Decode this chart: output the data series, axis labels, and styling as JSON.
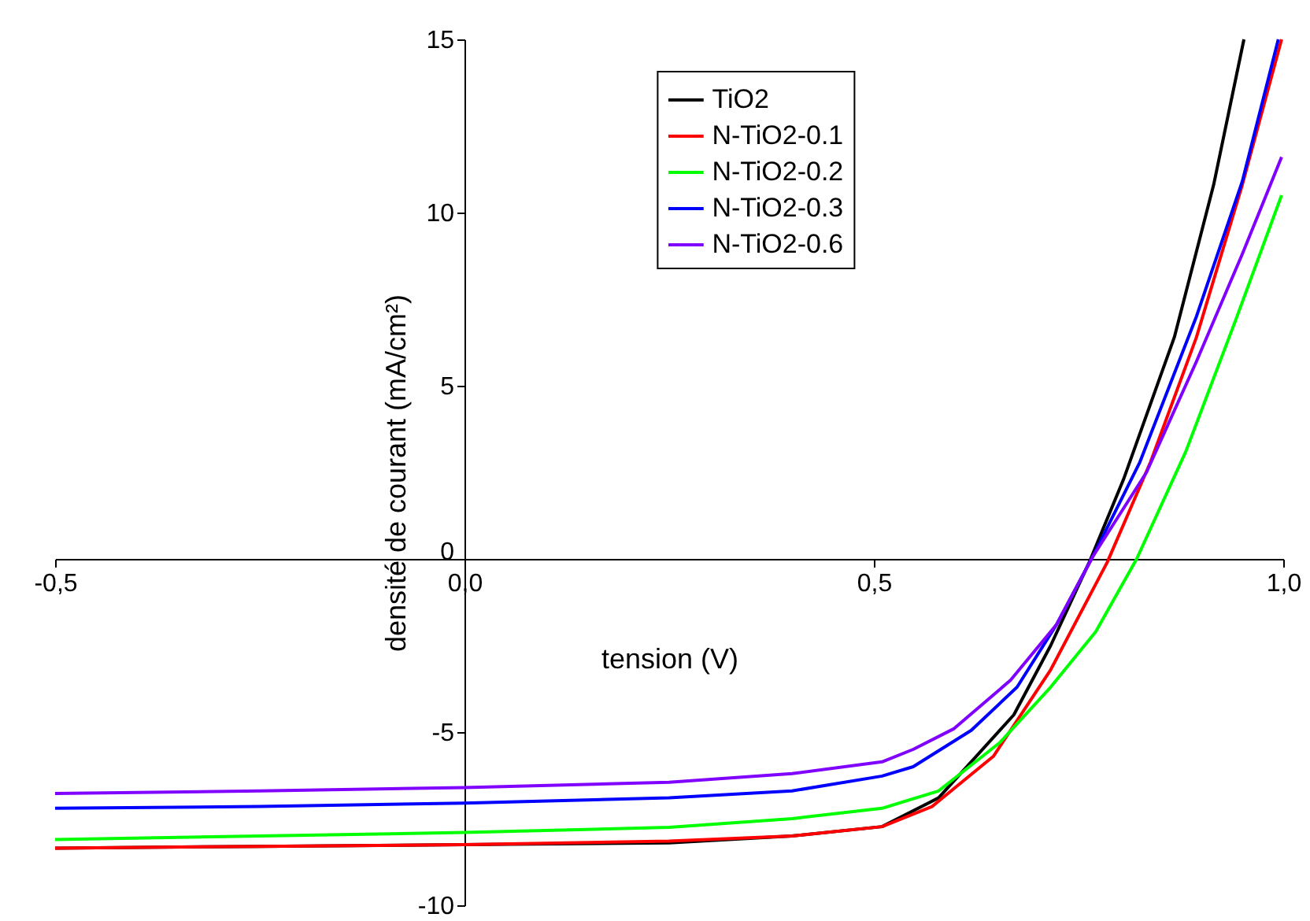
{
  "chart_data": {
    "type": "line",
    "xlabel": "tension (V)",
    "ylabel": "densité de courant (mA/cm²)",
    "xlim": [
      -0.5,
      1.0
    ],
    "ylim": [
      -10,
      15
    ],
    "xticks": [
      {
        "value": -0.5,
        "label": "-0,5"
      },
      {
        "value": 0,
        "label": "0,0"
      },
      {
        "value": 0.5,
        "label": "0,5"
      },
      {
        "value": 1.0,
        "label": "1,0"
      }
    ],
    "yticks": [
      -10,
      -5,
      0,
      5,
      10,
      15
    ],
    "grid": false,
    "legend": "top",
    "line_style": "solid",
    "marker": "none",
    "x": [
      -0.5,
      -0.25,
      0,
      0.25,
      0.4,
      0.51,
      0.579,
      0.671,
      0.716,
      0.763,
      0.805,
      0.867,
      0.915,
      0.952
    ],
    "series": [
      {
        "name": "TiO2",
        "color": "#000000",
        "values": [
          -8.35,
          -8.3,
          -8.25,
          -8.2,
          -8.0,
          -7.73,
          -6.9,
          -4.5,
          -2.5,
          -0.1,
          2.3,
          6.4,
          10.8,
          15
        ]
      },
      {
        "name": "N-TiO2-0.1",
        "color": "#ff0000",
        "x": [
          -0.5,
          -0.25,
          0,
          0.25,
          0.4,
          0.51,
          0.571,
          0.646,
          0.716,
          0.785,
          0.838,
          0.894,
          0.95,
          0.998
        ],
        "values": [
          -8.35,
          -8.3,
          -8.25,
          -8.15,
          -8.0,
          -7.73,
          -7.15,
          -5.7,
          -3.2,
          -0.1,
          2.8,
          6.4,
          10.8,
          15
        ]
      },
      {
        "name": "N-TiO2-0.2",
        "color": "#00ff00",
        "x": [
          -0.5,
          -0.25,
          0,
          0.25,
          0.4,
          0.51,
          0.579,
          0.654,
          0.716,
          0.771,
          0.821,
          0.881,
          0.942,
          0.998
        ],
        "values": [
          -8.1,
          -8.0,
          -7.9,
          -7.75,
          -7.5,
          -7.2,
          -6.7,
          -5.3,
          -3.7,
          -2.1,
          0,
          3.1,
          6.9,
          10.5
        ]
      },
      {
        "name": "N-TiO2-0.3",
        "color": "#0000ff",
        "x": [
          -0.5,
          -0.25,
          0,
          0.25,
          0.4,
          0.51,
          0.548,
          0.619,
          0.675,
          0.723,
          0.767,
          0.825,
          0.894,
          0.95,
          0.994
        ],
        "values": [
          -7.2,
          -7.15,
          -7.05,
          -6.9,
          -6.7,
          -6.27,
          -6.0,
          -4.95,
          -3.7,
          -1.9,
          0.05,
          2.8,
          7.0,
          10.9,
          15
        ]
      },
      {
        "name": "N-TiO2-0.6",
        "color": "#8000ff",
        "x": [
          -0.5,
          -0.25,
          0,
          0.25,
          0.4,
          0.51,
          0.548,
          0.598,
          0.667,
          0.723,
          0.767,
          0.833,
          0.894,
          0.95,
          0.998
        ],
        "values": [
          -6.77,
          -6.7,
          -6.6,
          -6.45,
          -6.2,
          -5.86,
          -5.5,
          -4.9,
          -3.5,
          -1.9,
          0.05,
          2.5,
          5.7,
          8.8,
          11.6
        ]
      }
    ]
  }
}
